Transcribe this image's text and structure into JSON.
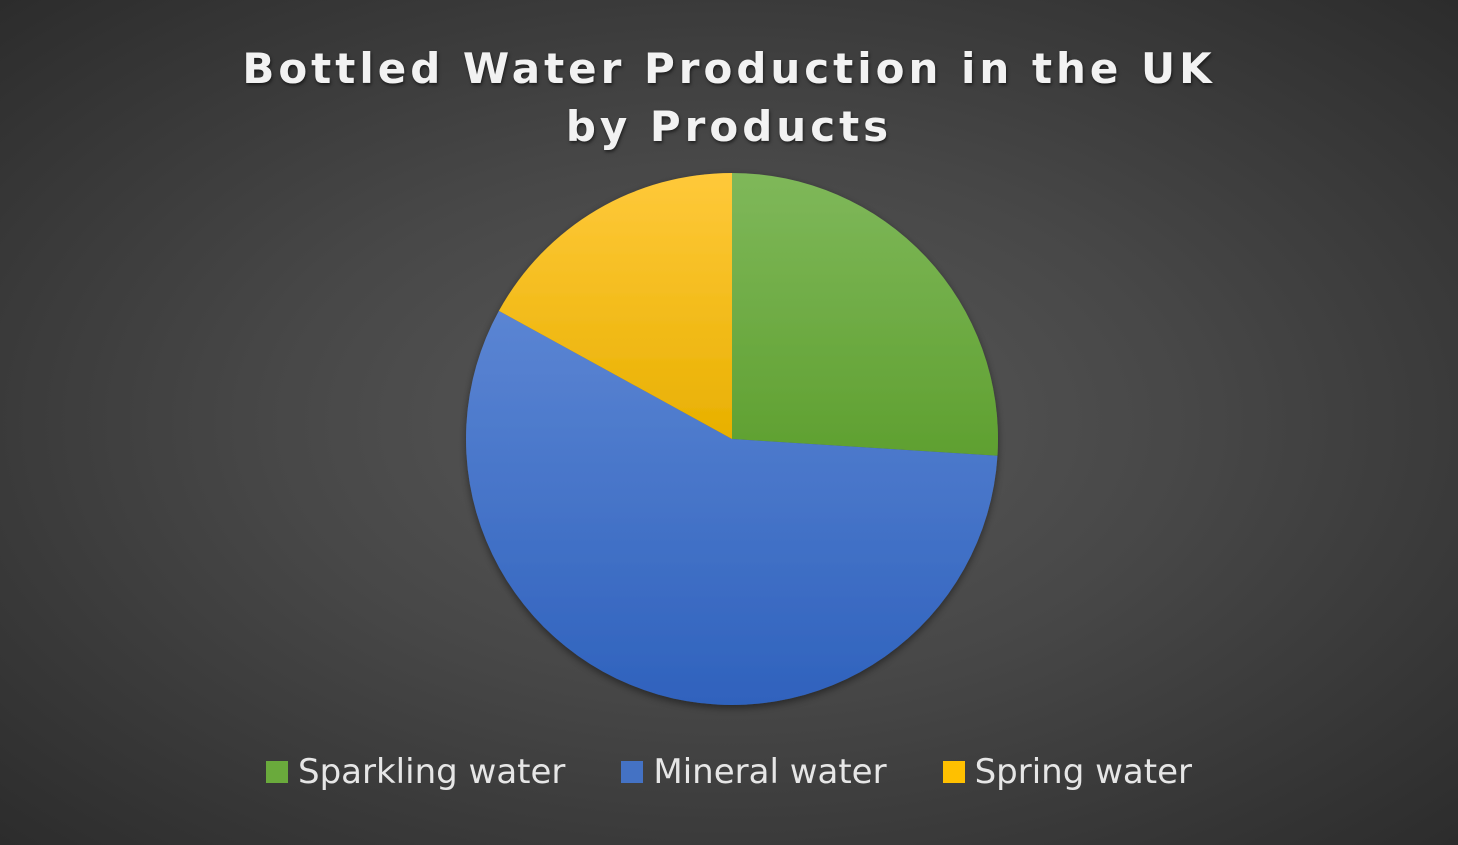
{
  "chart_data": {
    "type": "pie",
    "title": "Bottled Water Production in the UK by Products",
    "categories": [
      "Sparkling water",
      "Mineral water",
      "Spring water"
    ],
    "values": [
      26,
      57,
      17
    ],
    "colors": [
      "#6aaa3c",
      "#4472c4",
      "#ffc000"
    ],
    "legend": "bottom",
    "data_labels": false
  },
  "legend_items": [
    {
      "label": "Sparkling water",
      "color": "#6aaa3c"
    },
    {
      "label": "Mineral water",
      "color": "#4472c4"
    },
    {
      "label": "Spring water",
      "color": "#ffc000"
    }
  ]
}
